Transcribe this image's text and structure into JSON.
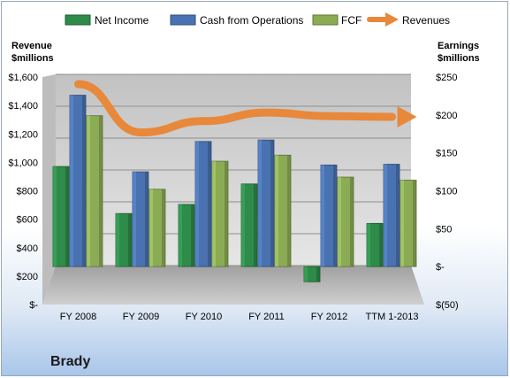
{
  "chart_data": {
    "type": "bar",
    "title": "Brady",
    "categories": [
      "FY 2008",
      "FY 2009",
      "FY 2010",
      "FY 2011",
      "FY 2012",
      "TTM 1-2013"
    ],
    "series": [
      {
        "name": "Net Income",
        "axis": "right",
        "type": "bar",
        "color": "#2e8b4a",
        "values": [
          132,
          70,
          82,
          109,
          -20,
          57
        ]
      },
      {
        "name": "Cash from Operations",
        "axis": "right",
        "type": "bar",
        "color": "#4a72b0",
        "values": [
          226,
          125,
          165,
          167,
          134,
          135
        ]
      },
      {
        "name": "FCF",
        "axis": "right",
        "type": "bar",
        "color": "#8bab55",
        "values": [
          199,
          102,
          139,
          147,
          118,
          114
        ]
      },
      {
        "name": "Revenues",
        "axis": "left",
        "type": "line-arrow",
        "color": "#e8883a",
        "values": [
          1550,
          1210,
          1290,
          1350,
          1325,
          1320
        ]
      }
    ],
    "left_axis": {
      "title_line1": "Revenue",
      "title_line2": "$millions",
      "ylim": [
        0,
        1600
      ],
      "ticks": [
        0,
        200,
        400,
        600,
        800,
        1000,
        1200,
        1400,
        1600
      ],
      "tick_labels": [
        "$-",
        "$200",
        "$400",
        "$600",
        "$800",
        "$1,000",
        "$1,200",
        "$1,400",
        "$1,600"
      ]
    },
    "right_axis": {
      "title_line1": "Earnings",
      "title_line2": "$millions",
      "ylim": [
        -50,
        250
      ],
      "ticks": [
        -50,
        0,
        50,
        100,
        150,
        200,
        250
      ],
      "tick_labels": [
        "$(50)",
        "$-",
        "$50",
        "$100",
        "$150",
        "$200",
        "$250"
      ]
    },
    "grid": true,
    "legend": "top"
  },
  "colors": {
    "net_income": "#2e8b4a",
    "cash_from_operations": "#4a72b0",
    "fcf": "#8bab55",
    "revenues": "#e8883a"
  }
}
